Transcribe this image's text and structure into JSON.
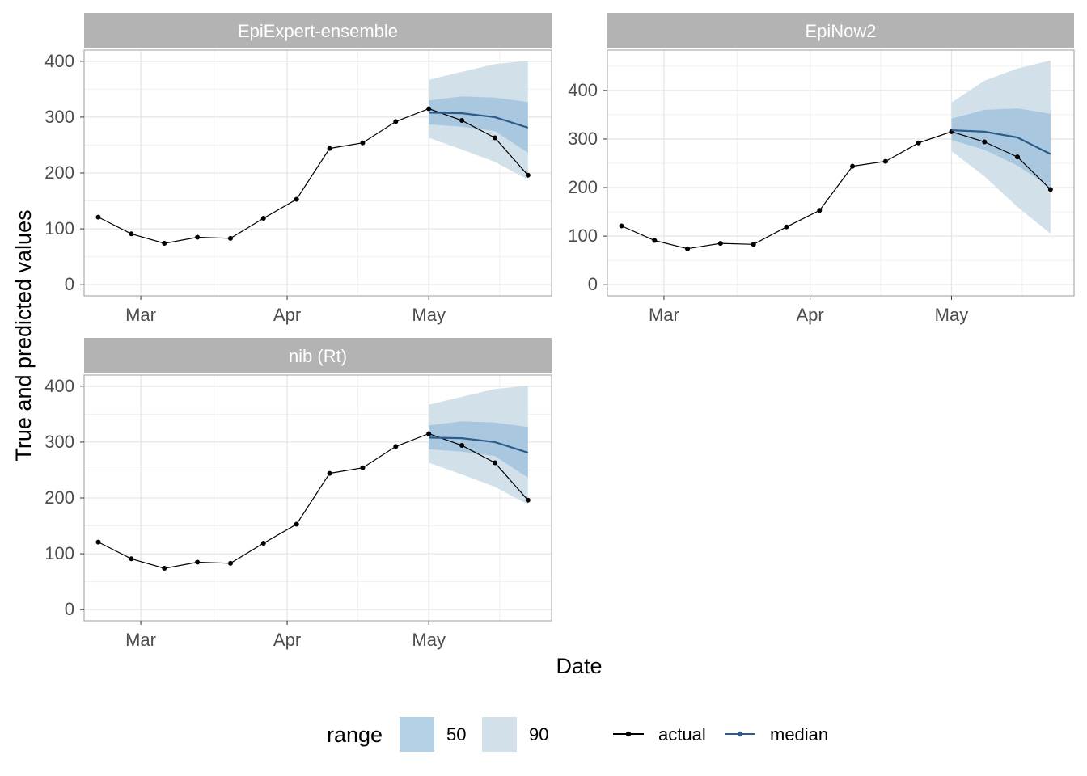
{
  "chart_data": [
    {
      "type": "line",
      "title": "EpiExpert-ensemble",
      "xlabel": "Date",
      "ylabel": "True and predicted values",
      "x_tick_labels": [
        {
          "date": "2021-03-01",
          "label": "Mar"
        },
        {
          "date": "2021-04-01",
          "label": "Apr"
        },
        {
          "date": "2021-05-01",
          "label": "May"
        }
      ],
      "y_ticks": [
        0,
        100,
        200,
        300,
        400
      ],
      "xlim": [
        "2021-02-17",
        "2021-05-27"
      ],
      "ylim": [
        -20,
        420
      ],
      "series": [
        {
          "name": "actual",
          "x": [
            "2021-02-20",
            "2021-02-27",
            "2021-03-06",
            "2021-03-13",
            "2021-03-20",
            "2021-03-27",
            "2021-04-03",
            "2021-04-10",
            "2021-04-17",
            "2021-04-24",
            "2021-05-01",
            "2021-05-08",
            "2021-05-15",
            "2021-05-22"
          ],
          "values": [
            121,
            91,
            74,
            85,
            83,
            119,
            153,
            244,
            254,
            292,
            315,
            294,
            263,
            196
          ]
        },
        {
          "name": "median",
          "x": [
            "2021-05-01",
            "2021-05-08",
            "2021-05-15",
            "2021-05-22"
          ],
          "values": [
            308,
            307,
            300,
            281
          ]
        }
      ],
      "ranges": [
        {
          "name": "90",
          "x": [
            "2021-05-01",
            "2021-05-08",
            "2021-05-15",
            "2021-05-22"
          ],
          "lower": [
            263,
            242,
            220,
            188
          ],
          "upper": [
            367,
            381,
            395,
            401
          ]
        },
        {
          "name": "50",
          "x": [
            "2021-05-01",
            "2021-05-08",
            "2021-05-15",
            "2021-05-22"
          ],
          "lower": [
            287,
            283,
            275,
            236
          ],
          "upper": [
            330,
            337,
            335,
            327
          ]
        }
      ]
    },
    {
      "type": "line",
      "title": "EpiNow2",
      "xlabel": "Date",
      "ylabel": "True and predicted values",
      "x_tick_labels": [
        {
          "date": "2021-03-01",
          "label": "Mar"
        },
        {
          "date": "2021-04-01",
          "label": "Apr"
        },
        {
          "date": "2021-05-01",
          "label": "May"
        }
      ],
      "y_ticks": [
        0,
        100,
        200,
        300,
        400
      ],
      "xlim": [
        "2021-02-17",
        "2021-05-27"
      ],
      "ylim": [
        -23,
        483
      ],
      "series": [
        {
          "name": "actual",
          "x": [
            "2021-02-20",
            "2021-02-27",
            "2021-03-06",
            "2021-03-13",
            "2021-03-20",
            "2021-03-27",
            "2021-04-03",
            "2021-04-10",
            "2021-04-17",
            "2021-04-24",
            "2021-05-01",
            "2021-05-08",
            "2021-05-15",
            "2021-05-22"
          ],
          "values": [
            121,
            91,
            74,
            85,
            83,
            119,
            153,
            244,
            254,
            292,
            315,
            294,
            263,
            196
          ]
        },
        {
          "name": "median",
          "x": [
            "2021-05-01",
            "2021-05-08",
            "2021-05-15",
            "2021-05-22"
          ],
          "values": [
            318,
            315,
            303,
            269
          ]
        }
      ],
      "ranges": [
        {
          "name": "90",
          "x": [
            "2021-05-01",
            "2021-05-08",
            "2021-05-15",
            "2021-05-22"
          ],
          "lower": [
            275,
            223,
            160,
            105
          ],
          "upper": [
            375,
            420,
            445,
            462
          ]
        },
        {
          "name": "50",
          "x": [
            "2021-05-01",
            "2021-05-08",
            "2021-05-15",
            "2021-05-22"
          ],
          "lower": [
            298,
            278,
            245,
            200
          ],
          "upper": [
            342,
            360,
            363,
            352
          ]
        }
      ]
    },
    {
      "type": "line",
      "title": "nib (Rt)",
      "xlabel": "Date",
      "ylabel": "True and predicted values",
      "x_tick_labels": [
        {
          "date": "2021-03-01",
          "label": "Mar"
        },
        {
          "date": "2021-04-01",
          "label": "Apr"
        },
        {
          "date": "2021-05-01",
          "label": "May"
        }
      ],
      "y_ticks": [
        0,
        100,
        200,
        300,
        400
      ],
      "xlim": [
        "2021-02-17",
        "2021-05-27"
      ],
      "ylim": [
        -20,
        420
      ],
      "series": [
        {
          "name": "actual",
          "x": [
            "2021-02-20",
            "2021-02-27",
            "2021-03-06",
            "2021-03-13",
            "2021-03-20",
            "2021-03-27",
            "2021-04-03",
            "2021-04-10",
            "2021-04-17",
            "2021-04-24",
            "2021-05-01",
            "2021-05-08",
            "2021-05-15",
            "2021-05-22"
          ],
          "values": [
            121,
            91,
            74,
            85,
            83,
            119,
            153,
            244,
            254,
            292,
            315,
            294,
            263,
            196
          ]
        },
        {
          "name": "median",
          "x": [
            "2021-05-01",
            "2021-05-08",
            "2021-05-15",
            "2021-05-22"
          ],
          "values": [
            308,
            307,
            300,
            281
          ]
        }
      ],
      "ranges": [
        {
          "name": "90",
          "x": [
            "2021-05-01",
            "2021-05-08",
            "2021-05-15",
            "2021-05-22"
          ],
          "lower": [
            263,
            242,
            220,
            188
          ],
          "upper": [
            367,
            381,
            395,
            401
          ]
        },
        {
          "name": "50",
          "x": [
            "2021-05-01",
            "2021-05-08",
            "2021-05-15",
            "2021-05-22"
          ],
          "lower": [
            287,
            283,
            275,
            236
          ],
          "upper": [
            330,
            337,
            335,
            327
          ]
        }
      ]
    }
  ],
  "legend": {
    "range_title": "range",
    "range_items": [
      {
        "label": "50",
        "color": "#b4d1e6"
      },
      {
        "label": "90",
        "color": "#d2e1e9"
      }
    ],
    "line_items": [
      {
        "label": "actual",
        "color": "#000000"
      },
      {
        "label": "median",
        "color": "#2b5c8a"
      }
    ],
    "placement": "bottom"
  },
  "colors": {
    "actual": "#000000",
    "median": "#2b5c8a",
    "range_50": "#a2c3de",
    "range_90": "#d2e1e9",
    "strip": "#b3b3b3",
    "grid": "#e6e6e6",
    "panel_border": "#b3b3b3"
  },
  "axis_titles": {
    "x": "Date",
    "y": "True and predicted values"
  }
}
